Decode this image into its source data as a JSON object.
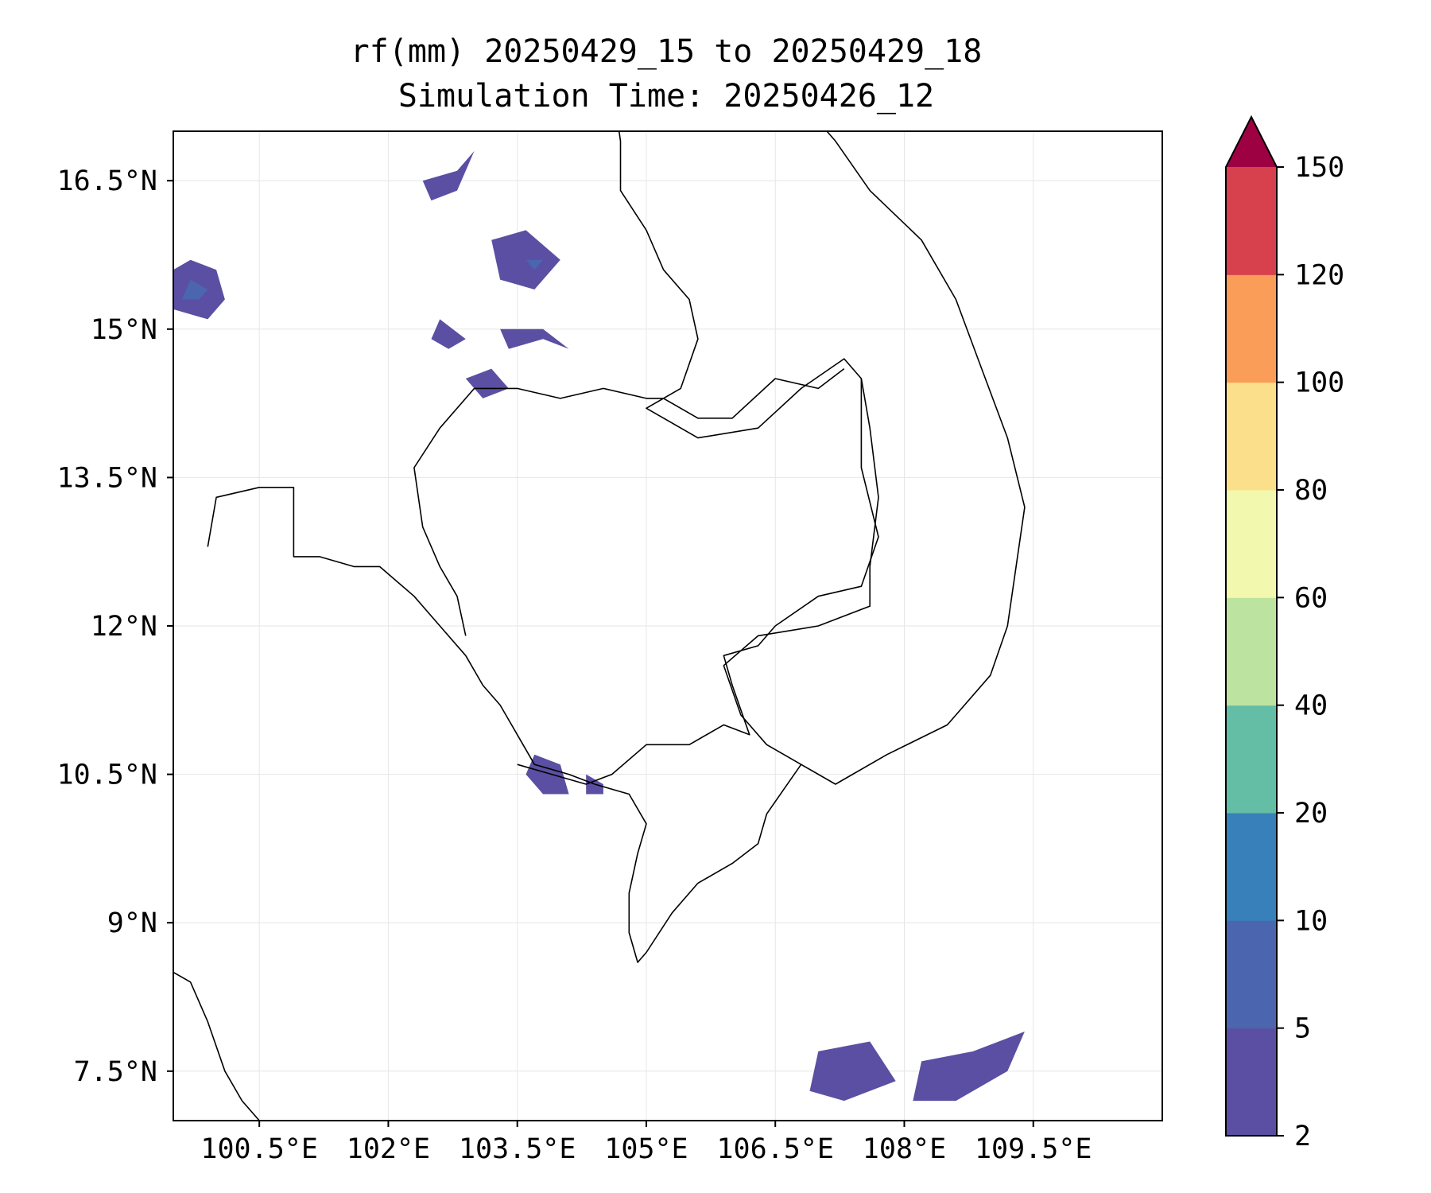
{
  "title": {
    "line1": "rf(mm) 20250429_15 to 20250429_18",
    "line2": "Simulation Time: 20250426_12"
  },
  "map": {
    "lon_range": [
      99.5,
      111.0
    ],
    "lat_range": [
      7.0,
      17.0
    ],
    "grid": true,
    "x_ticks": [
      {
        "value": 100.5,
        "label": "100.5°E"
      },
      {
        "value": 102.0,
        "label": "102°E"
      },
      {
        "value": 103.5,
        "label": "103.5°E"
      },
      {
        "value": 105.0,
        "label": "105°E"
      },
      {
        "value": 106.5,
        "label": "106.5°E"
      },
      {
        "value": 108.0,
        "label": "108°E"
      },
      {
        "value": 109.5,
        "label": "109.5°E"
      }
    ],
    "y_ticks": [
      {
        "value": 16.5,
        "label": "16.5°N"
      },
      {
        "value": 15.0,
        "label": "15°N"
      },
      {
        "value": 13.5,
        "label": "13.5°N"
      },
      {
        "value": 12.0,
        "label": "12°N"
      },
      {
        "value": 10.5,
        "label": "10.5°N"
      },
      {
        "value": 9.0,
        "label": "9°N"
      },
      {
        "value": 7.5,
        "label": "7.5°N"
      }
    ],
    "coastline": [
      [
        [
          104.6,
          17.5
        ],
        [
          104.7,
          16.9
        ],
        [
          104.7,
          16.4
        ],
        [
          105.0,
          16.0
        ],
        [
          105.2,
          15.6
        ],
        [
          105.5,
          15.3
        ],
        [
          105.6,
          14.9
        ],
        [
          105.4,
          14.4
        ],
        [
          105.0,
          14.2
        ],
        [
          105.6,
          13.9
        ],
        [
          106.3,
          14.0
        ],
        [
          106.8,
          14.4
        ],
        [
          107.3,
          14.7
        ],
        [
          107.5,
          14.5
        ],
        [
          107.6,
          14.0
        ],
        [
          107.7,
          13.3
        ],
        [
          107.6,
          12.6
        ],
        [
          107.6,
          12.2
        ],
        [
          107.0,
          12.0
        ],
        [
          106.3,
          11.9
        ],
        [
          105.9,
          11.6
        ],
        [
          106.1,
          11.1
        ],
        [
          106.4,
          10.8
        ],
        [
          106.8,
          10.6
        ],
        [
          107.2,
          10.4
        ],
        [
          107.8,
          10.7
        ],
        [
          108.5,
          11.0
        ],
        [
          109.0,
          11.5
        ],
        [
          109.2,
          12.0
        ],
        [
          109.3,
          12.6
        ],
        [
          109.4,
          13.2
        ],
        [
          109.2,
          13.9
        ],
        [
          108.9,
          14.6
        ],
        [
          108.6,
          15.3
        ],
        [
          108.2,
          15.9
        ],
        [
          107.6,
          16.4
        ],
        [
          107.2,
          16.9
        ],
        [
          106.8,
          17.3
        ],
        [
          106.6,
          17.6
        ]
      ],
      [
        [
          106.8,
          10.6
        ],
        [
          106.6,
          10.35
        ],
        [
          106.4,
          10.1
        ],
        [
          106.3,
          9.8
        ],
        [
          106.0,
          9.6
        ],
        [
          105.6,
          9.4
        ],
        [
          105.3,
          9.1
        ],
        [
          105.0,
          8.7
        ],
        [
          104.9,
          8.6
        ],
        [
          104.8,
          8.9
        ],
        [
          104.8,
          9.3
        ],
        [
          104.9,
          9.7
        ],
        [
          105.0,
          10.0
        ],
        [
          104.8,
          10.3
        ],
        [
          104.4,
          10.4
        ],
        [
          104.1,
          10.5
        ],
        [
          103.7,
          10.6
        ],
        [
          103.5,
          10.9
        ],
        [
          103.3,
          11.2
        ],
        [
          103.1,
          11.4
        ],
        [
          102.9,
          11.7
        ],
        [
          102.6,
          12.0
        ],
        [
          102.3,
          12.3
        ],
        [
          101.9,
          12.6
        ],
        [
          101.6,
          12.6
        ],
        [
          101.2,
          12.7
        ],
        [
          100.9,
          12.7
        ],
        [
          100.9,
          13.0
        ],
        [
          100.9,
          13.4
        ],
        [
          100.5,
          13.4
        ],
        [
          100.0,
          13.3
        ],
        [
          99.9,
          12.8
        ]
      ],
      [
        [
          99.5,
          8.5
        ],
        [
          99.7,
          8.4
        ],
        [
          99.9,
          8.0
        ],
        [
          100.1,
          7.5
        ],
        [
          100.3,
          7.2
        ],
        [
          100.6,
          6.9
        ]
      ]
    ],
    "borders": [
      [
        [
          103.0,
          14.4
        ],
        [
          103.5,
          14.4
        ],
        [
          104.0,
          14.3
        ],
        [
          104.5,
          14.4
        ],
        [
          105.0,
          14.3
        ],
        [
          105.2,
          14.3
        ]
      ],
      [
        [
          105.2,
          14.3
        ],
        [
          105.6,
          14.1
        ],
        [
          106.0,
          14.1
        ],
        [
          106.5,
          14.5
        ],
        [
          107.0,
          14.4
        ],
        [
          107.3,
          14.6
        ]
      ],
      [
        [
          103.0,
          14.4
        ],
        [
          102.6,
          14.0
        ],
        [
          102.3,
          13.6
        ],
        [
          102.4,
          13.0
        ],
        [
          102.6,
          12.6
        ],
        [
          102.8,
          12.3
        ],
        [
          102.9,
          11.9
        ]
      ],
      [
        [
          103.5,
          10.6
        ],
        [
          103.9,
          10.5
        ],
        [
          104.3,
          10.4
        ],
        [
          104.6,
          10.5
        ],
        [
          105.0,
          10.8
        ],
        [
          105.5,
          10.8
        ],
        [
          105.9,
          11.0
        ],
        [
          106.2,
          10.9
        ],
        [
          106.0,
          11.4
        ],
        [
          105.9,
          11.7
        ],
        [
          106.3,
          11.8
        ],
        [
          106.5,
          12.0
        ],
        [
          107.0,
          12.3
        ],
        [
          107.5,
          12.4
        ],
        [
          107.7,
          12.9
        ],
        [
          107.5,
          13.6
        ],
        [
          107.5,
          14.5
        ]
      ]
    ],
    "rain_polygons": [
      {
        "color": "#5a4fa2",
        "points": [
          [
            99.5,
            15.2
          ],
          [
            99.9,
            15.1
          ],
          [
            100.1,
            15.3
          ],
          [
            100.0,
            15.6
          ],
          [
            99.7,
            15.7
          ],
          [
            99.5,
            15.6
          ]
        ]
      },
      {
        "color": "#5a4fa2",
        "points": [
          [
            102.4,
            16.5
          ],
          [
            102.8,
            16.6
          ],
          [
            103.0,
            16.8
          ],
          [
            102.8,
            16.4
          ],
          [
            102.5,
            16.3
          ]
        ]
      },
      {
        "color": "#5a4fa2",
        "points": [
          [
            103.2,
            15.9
          ],
          [
            103.6,
            16.0
          ],
          [
            104.0,
            15.7
          ],
          [
            103.7,
            15.4
          ],
          [
            103.3,
            15.5
          ]
        ]
      },
      {
        "color": "#5a4fa2",
        "points": [
          [
            102.6,
            15.1
          ],
          [
            102.9,
            14.9
          ],
          [
            102.7,
            14.8
          ],
          [
            102.5,
            14.9
          ]
        ]
      },
      {
        "color": "#5a4fa2",
        "points": [
          [
            103.3,
            15.0
          ],
          [
            103.8,
            15.0
          ],
          [
            104.1,
            14.8
          ],
          [
            103.8,
            14.9
          ],
          [
            103.4,
            14.8
          ]
        ]
      },
      {
        "color": "#5a4fa2",
        "points": [
          [
            102.9,
            14.5
          ],
          [
            103.2,
            14.6
          ],
          [
            103.4,
            14.4
          ],
          [
            103.1,
            14.3
          ]
        ]
      },
      {
        "color": "#5a4fa2",
        "points": [
          [
            103.7,
            10.7
          ],
          [
            104.0,
            10.6
          ],
          [
            104.1,
            10.3
          ],
          [
            103.8,
            10.3
          ],
          [
            103.6,
            10.5
          ]
        ]
      },
      {
        "color": "#5a4fa2",
        "points": [
          [
            104.3,
            10.5
          ],
          [
            104.5,
            10.4
          ],
          [
            104.5,
            10.3
          ],
          [
            104.3,
            10.3
          ]
        ]
      },
      {
        "color": "#5a4fa2",
        "points": [
          [
            107.0,
            7.7
          ],
          [
            107.6,
            7.8
          ],
          [
            107.9,
            7.4
          ],
          [
            107.3,
            7.2
          ],
          [
            106.9,
            7.3
          ]
        ]
      },
      {
        "color": "#5a4fa2",
        "points": [
          [
            108.2,
            7.6
          ],
          [
            108.8,
            7.7
          ],
          [
            109.4,
            7.9
          ],
          [
            109.2,
            7.5
          ],
          [
            108.6,
            7.2
          ],
          [
            108.1,
            7.2
          ]
        ]
      },
      {
        "color": "#4b65ae",
        "points": [
          [
            99.6,
            15.3
          ],
          [
            99.8,
            15.3
          ],
          [
            99.9,
            15.4
          ],
          [
            99.7,
            15.5
          ]
        ]
      },
      {
        "color": "#4b65ae",
        "points": [
          [
            103.6,
            15.7
          ],
          [
            103.8,
            15.7
          ],
          [
            103.7,
            15.6
          ]
        ]
      }
    ]
  },
  "colorbar": {
    "levels": [
      "2",
      "5",
      "10",
      "20",
      "40",
      "60",
      "80",
      "100",
      "120",
      "150"
    ],
    "colors": [
      "#5a4fa2",
      "#4b65ae",
      "#3880b9",
      "#63bea5",
      "#bde3a0",
      "#f2f8ad",
      "#fcdf8b",
      "#f99d59",
      "#d7404d"
    ],
    "extend_color": "#9e0142"
  }
}
